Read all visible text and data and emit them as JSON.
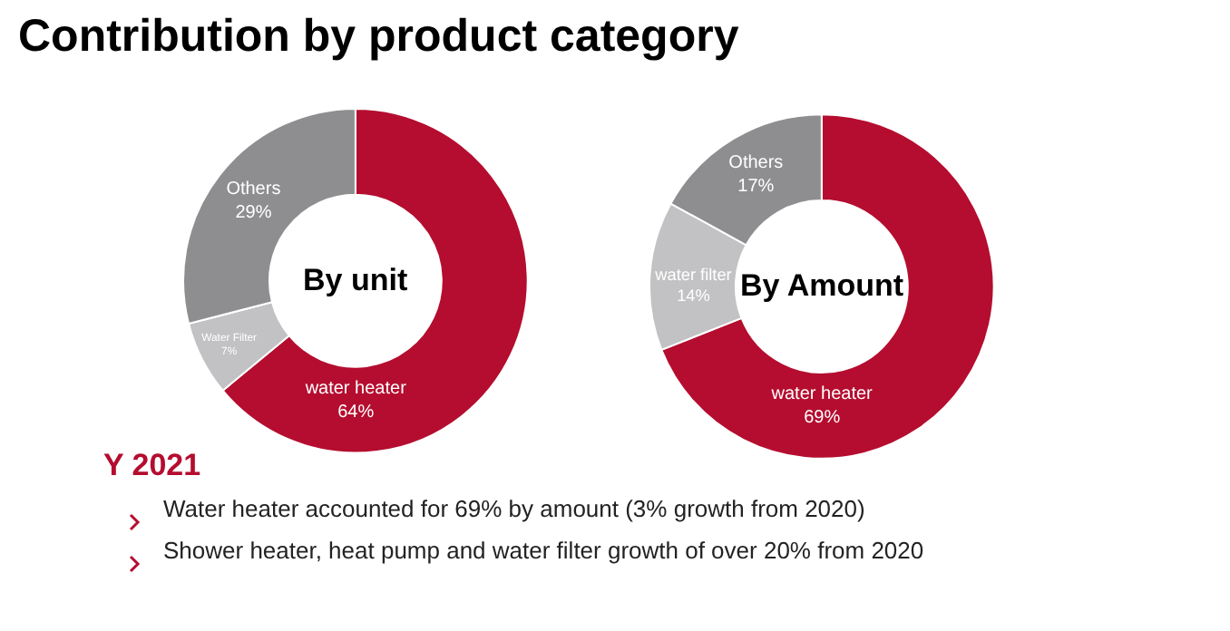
{
  "chart_data": [
    {
      "type": "donut",
      "title": "Contribution by product category",
      "categories": [
        "water heater",
        "Water Filter",
        "Others"
      ],
      "values": [
        64,
        7,
        29
      ],
      "value_labels": [
        "64%",
        "7%",
        "29%"
      ],
      "colors": [
        "#b50d2f",
        "#c2c1c3",
        "#8e8d90"
      ],
      "annotations": [
        "By unit"
      ],
      "legend": false
    },
    {
      "type": "donut",
      "categories": [
        "water heater",
        "water filter",
        "Others"
      ],
      "values": [
        69,
        14,
        17
      ],
      "value_labels": [
        "69%",
        "14%",
        "17%"
      ],
      "colors": [
        "#b50d2f",
        "#c2c1c3",
        "#8e8d90"
      ],
      "annotations": [
        "By Amount",
        "Y 2021",
        "Water heater accounted for 69% by amount (3% growth from 2020)",
        "Shower heater, heat pump and water filter growth of over 20% from 2020"
      ],
      "legend": false
    }
  ]
}
